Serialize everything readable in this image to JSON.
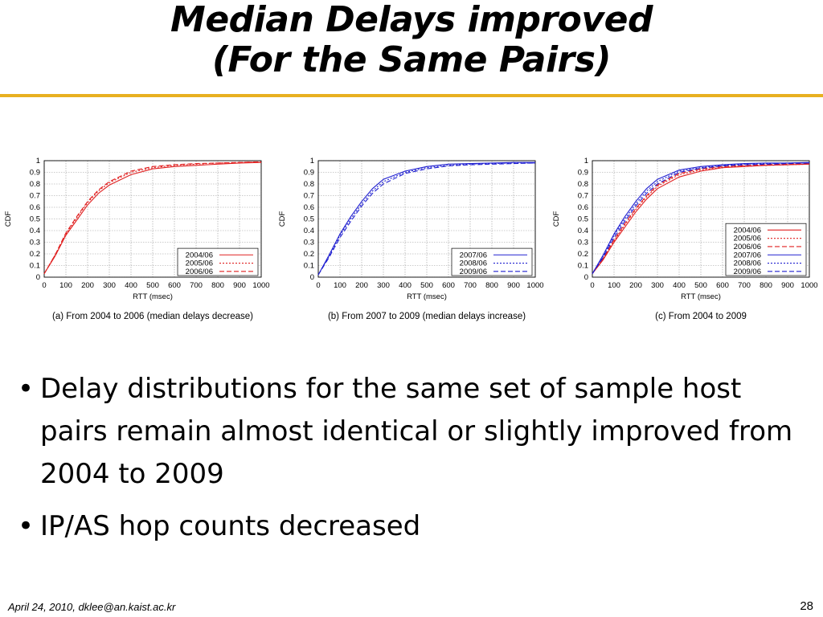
{
  "slide": {
    "title_line1": "Median Delays improved",
    "title_line2": "(For the Same Pairs)",
    "bullets": [
      "Delay distributions for the same set of sample host pairs remain almost identical or slightly improved from 2004 to 2009",
      "IP/AS hop counts decreased"
    ],
    "bullet_glyph": "•",
    "footer": "April 24, 2010, dklee@an.kaist.ac.kr",
    "page_number": "28",
    "accent_color": "#e8b020"
  },
  "chart_data": [
    {
      "type": "line",
      "caption": "(a) From 2004 to 2006 (median delays decrease)",
      "xlabel": "RTT (msec)",
      "ylabel": "CDF",
      "xlim": [
        0,
        1000
      ],
      "ylim": [
        0,
        1
      ],
      "x_ticks": [
        "0",
        "100",
        "200",
        "300",
        "400",
        "500",
        "600",
        "700",
        "800",
        "900",
        "1000"
      ],
      "y_ticks": [
        "0",
        "0.1",
        "0.2",
        "0.3",
        "0.4",
        "0.5",
        "0.6",
        "0.7",
        "0.8",
        "0.9",
        "1"
      ],
      "grid": true,
      "legend_position": "bottom-right",
      "series": [
        {
          "name": "2004/06",
          "color": "#e02020",
          "dash": "",
          "x": [
            0,
            50,
            100,
            150,
            200,
            250,
            300,
            400,
            500,
            600,
            700,
            800,
            900,
            1000
          ],
          "y": [
            0.03,
            0.18,
            0.36,
            0.49,
            0.62,
            0.72,
            0.79,
            0.88,
            0.93,
            0.95,
            0.96,
            0.97,
            0.98,
            0.985
          ]
        },
        {
          "name": "2005/06",
          "color": "#e02020",
          "dash": "2,2",
          "x": [
            0,
            50,
            100,
            150,
            200,
            250,
            300,
            400,
            500,
            600,
            700,
            800,
            900,
            1000
          ],
          "y": [
            0.03,
            0.19,
            0.37,
            0.51,
            0.64,
            0.74,
            0.81,
            0.9,
            0.94,
            0.96,
            0.97,
            0.98,
            0.985,
            0.99
          ]
        },
        {
          "name": "2006/06",
          "color": "#e02020",
          "dash": "6,3",
          "x": [
            0,
            50,
            100,
            150,
            200,
            250,
            300,
            400,
            500,
            600,
            700,
            800,
            900,
            1000
          ],
          "y": [
            0.03,
            0.19,
            0.38,
            0.52,
            0.65,
            0.75,
            0.82,
            0.91,
            0.95,
            0.965,
            0.975,
            0.98,
            0.985,
            0.99
          ]
        }
      ]
    },
    {
      "type": "line",
      "caption": "(b) From 2007 to 2009 (median delays increase)",
      "xlabel": "RTT (msec)",
      "ylabel": "CDF",
      "xlim": [
        0,
        1000
      ],
      "ylim": [
        0,
        1
      ],
      "x_ticks": [
        "0",
        "100",
        "200",
        "300",
        "400",
        "500",
        "600",
        "700",
        "800",
        "900",
        "1000"
      ],
      "y_ticks": [
        "0",
        "0.1",
        "0.2",
        "0.3",
        "0.4",
        "0.5",
        "0.6",
        "0.7",
        "0.8",
        "0.9",
        "1"
      ],
      "grid": true,
      "legend_position": "bottom-right",
      "series": [
        {
          "name": "2007/06",
          "color": "#2020d0",
          "dash": "",
          "x": [
            0,
            50,
            100,
            150,
            200,
            250,
            300,
            400,
            500,
            600,
            700,
            800,
            900,
            1000
          ],
          "y": [
            0.02,
            0.19,
            0.37,
            0.52,
            0.65,
            0.76,
            0.84,
            0.91,
            0.95,
            0.97,
            0.975,
            0.98,
            0.985,
            0.985
          ]
        },
        {
          "name": "2008/06",
          "color": "#2020d0",
          "dash": "2,2",
          "x": [
            0,
            50,
            100,
            150,
            200,
            250,
            300,
            400,
            500,
            600,
            700,
            800,
            900,
            1000
          ],
          "y": [
            0.02,
            0.18,
            0.36,
            0.5,
            0.63,
            0.74,
            0.82,
            0.9,
            0.94,
            0.96,
            0.97,
            0.975,
            0.98,
            0.98
          ]
        },
        {
          "name": "2009/06",
          "color": "#2020d0",
          "dash": "6,3",
          "x": [
            0,
            50,
            100,
            150,
            200,
            250,
            300,
            400,
            500,
            600,
            700,
            800,
            900,
            1000
          ],
          "y": [
            0.02,
            0.17,
            0.34,
            0.48,
            0.61,
            0.72,
            0.8,
            0.89,
            0.93,
            0.955,
            0.965,
            0.97,
            0.975,
            0.98
          ]
        }
      ]
    },
    {
      "type": "line",
      "caption": "(c) From 2004 to 2009",
      "xlabel": "RTT (msec)",
      "ylabel": "CDF",
      "xlim": [
        0,
        1000
      ],
      "ylim": [
        0,
        1
      ],
      "x_ticks": [
        "0",
        "100",
        "200",
        "300",
        "400",
        "500",
        "600",
        "700",
        "800",
        "900",
        "1000"
      ],
      "y_ticks": [
        "0",
        "0.1",
        "0.2",
        "0.3",
        "0.4",
        "0.5",
        "0.6",
        "0.7",
        "0.8",
        "0.9",
        "1"
      ],
      "grid": true,
      "legend_position": "bottom-right",
      "series": [
        {
          "name": "2004/06",
          "color": "#e02020",
          "dash": "",
          "x": [
            0,
            50,
            100,
            150,
            200,
            250,
            300,
            400,
            500,
            600,
            700,
            800,
            900,
            1000
          ],
          "y": [
            0.03,
            0.15,
            0.3,
            0.43,
            0.56,
            0.67,
            0.76,
            0.86,
            0.91,
            0.94,
            0.95,
            0.96,
            0.965,
            0.97
          ]
        },
        {
          "name": "2005/06",
          "color": "#e02020",
          "dash": "2,2",
          "x": [
            0,
            50,
            100,
            150,
            200,
            250,
            300,
            400,
            500,
            600,
            700,
            800,
            900,
            1000
          ],
          "y": [
            0.03,
            0.16,
            0.31,
            0.45,
            0.58,
            0.69,
            0.78,
            0.88,
            0.92,
            0.945,
            0.955,
            0.96,
            0.965,
            0.97
          ]
        },
        {
          "name": "2006/06",
          "color": "#e02020",
          "dash": "6,3",
          "x": [
            0,
            50,
            100,
            150,
            200,
            250,
            300,
            400,
            500,
            600,
            700,
            800,
            900,
            1000
          ],
          "y": [
            0.03,
            0.16,
            0.32,
            0.46,
            0.59,
            0.7,
            0.79,
            0.89,
            0.93,
            0.95,
            0.96,
            0.965,
            0.97,
            0.975
          ]
        },
        {
          "name": "2007/06",
          "color": "#2020d0",
          "dash": "",
          "x": [
            0,
            50,
            100,
            150,
            200,
            250,
            300,
            400,
            500,
            600,
            700,
            800,
            900,
            1000
          ],
          "y": [
            0.03,
            0.19,
            0.37,
            0.52,
            0.65,
            0.76,
            0.84,
            0.92,
            0.95,
            0.965,
            0.975,
            0.98,
            0.98,
            0.985
          ]
        },
        {
          "name": "2008/06",
          "color": "#2020d0",
          "dash": "2,2",
          "x": [
            0,
            50,
            100,
            150,
            200,
            250,
            300,
            400,
            500,
            600,
            700,
            800,
            900,
            1000
          ],
          "y": [
            0.03,
            0.18,
            0.36,
            0.5,
            0.63,
            0.74,
            0.82,
            0.91,
            0.94,
            0.96,
            0.97,
            0.975,
            0.98,
            0.98
          ]
        },
        {
          "name": "2009/06",
          "color": "#2020d0",
          "dash": "6,3",
          "x": [
            0,
            50,
            100,
            150,
            200,
            250,
            300,
            400,
            500,
            600,
            700,
            800,
            900,
            1000
          ],
          "y": [
            0.03,
            0.17,
            0.34,
            0.48,
            0.61,
            0.72,
            0.8,
            0.9,
            0.935,
            0.955,
            0.965,
            0.97,
            0.975,
            0.98
          ]
        }
      ]
    }
  ]
}
